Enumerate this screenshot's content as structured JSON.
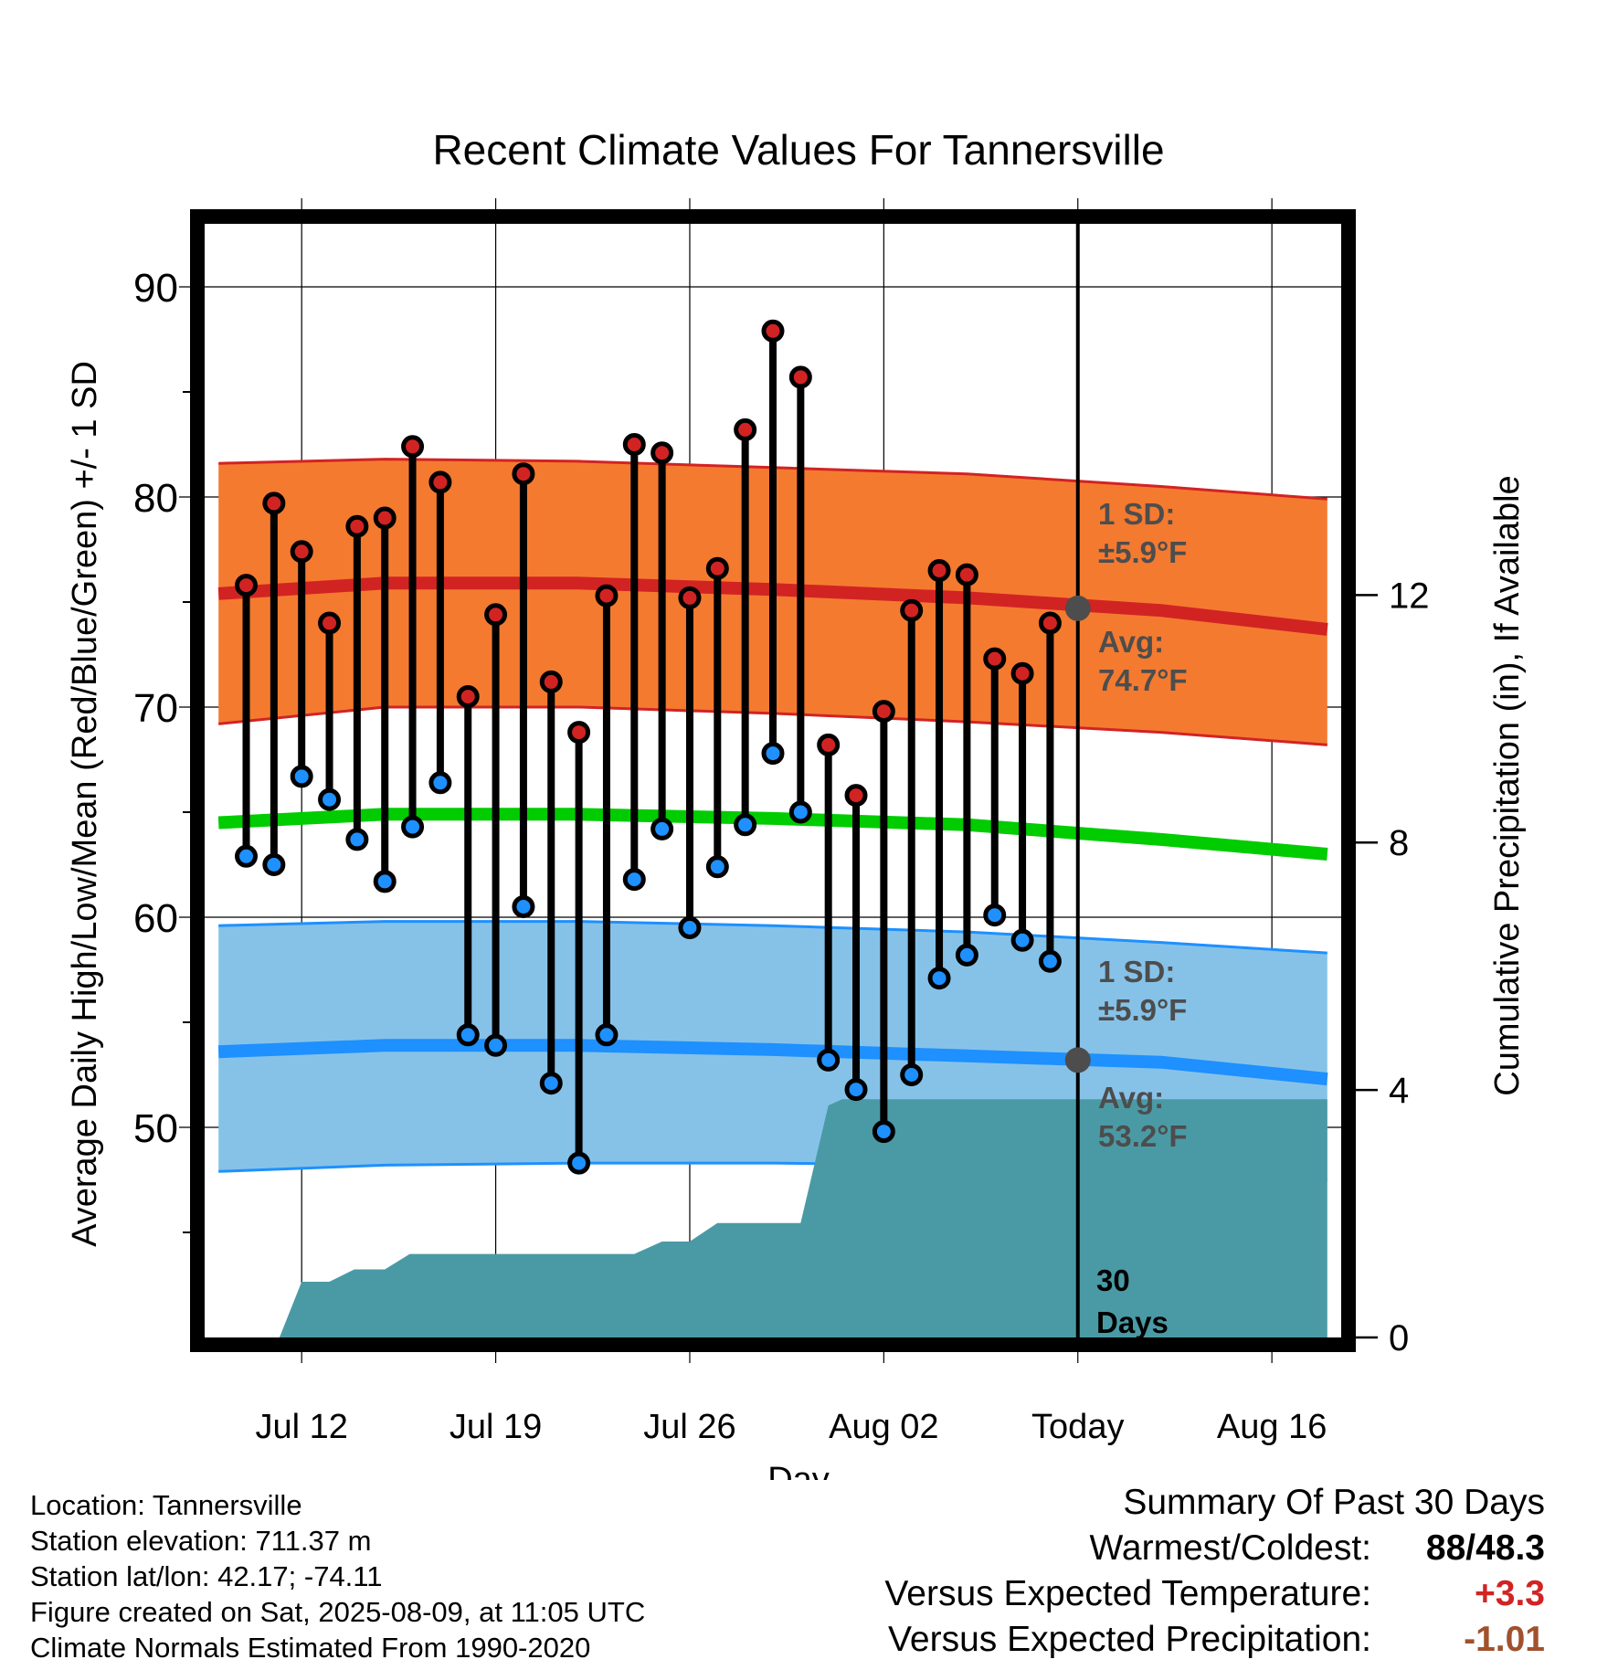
{
  "chart_data": {
    "type": "line",
    "title": "Recent Climate Values For Tannersville",
    "xlabel": "Day",
    "ylabel_left": "Average Daily High/Low/Mean (Red/Blue/Green) +/- 1 SD",
    "ylabel_right": "Cumulative Precipitation (in), If Available",
    "y_left_range": [
      40,
      93
    ],
    "y_left_ticks": [
      "50",
      "60",
      "70",
      "80",
      "90"
    ],
    "y_right_range": [
      0,
      18
    ],
    "y_right_ticks": [
      "0",
      "4",
      "8",
      "12"
    ],
    "x_range": [
      -3.5,
      37.5
    ],
    "x_ticks": [
      {
        "day": 0,
        "label": "Jul 12"
      },
      {
        "day": 7,
        "label": "Jul 19"
      },
      {
        "day": 14,
        "label": "Jul 26"
      },
      {
        "day": 21,
        "label": "Aug 02"
      },
      {
        "day": 28,
        "label": "Today"
      },
      {
        "day": 35,
        "label": "Aug 16"
      }
    ],
    "grid": true,
    "series": [
      {
        "name": "High",
        "color": "#d22323",
        "days": [
          -2,
          -1,
          0,
          1,
          2,
          3,
          4,
          5,
          6,
          7,
          8,
          9,
          10,
          11,
          12,
          13,
          14,
          15,
          16,
          17,
          18,
          19,
          20,
          21,
          22,
          23,
          24,
          25,
          26,
          27
        ],
        "values": [
          75.8,
          79.7,
          77.4,
          74.0,
          78.6,
          79.0,
          82.4,
          80.7,
          70.5,
          74.4,
          81.1,
          71.2,
          68.8,
          75.3,
          82.5,
          82.1,
          75.2,
          76.6,
          83.2,
          87.9,
          85.7,
          68.2,
          65.8,
          69.8,
          74.6,
          76.5,
          76.3,
          72.3,
          71.6,
          74.0
        ]
      },
      {
        "name": "Low",
        "color": "#1e90ff",
        "days": [
          -2,
          -1,
          0,
          1,
          2,
          3,
          4,
          5,
          6,
          7,
          8,
          9,
          10,
          11,
          12,
          13,
          14,
          15,
          16,
          17,
          18,
          19,
          20,
          21,
          22,
          23,
          24,
          25,
          26,
          27
        ],
        "values": [
          62.9,
          62.5,
          66.7,
          65.6,
          63.7,
          61.7,
          64.3,
          66.4,
          54.4,
          53.9,
          60.5,
          52.1,
          48.3,
          54.4,
          61.8,
          64.2,
          59.5,
          62.4,
          64.4,
          67.8,
          65.0,
          53.2,
          51.8,
          49.8,
          52.5,
          57.1,
          58.2,
          60.1,
          58.9,
          57.9
        ]
      },
      {
        "name": "Average High",
        "color": "#d22323",
        "days": [
          -3,
          3,
          10,
          17,
          24,
          31,
          37
        ],
        "values": [
          75.4,
          75.9,
          75.9,
          75.6,
          75.2,
          74.6,
          73.7
        ]
      },
      {
        "name": "Average High SD upper",
        "days": [
          -3,
          3,
          10,
          17,
          24,
          31,
          37
        ],
        "values": [
          81.6,
          81.8,
          81.7,
          81.4,
          81.1,
          80.5,
          79.9
        ]
      },
      {
        "name": "Average High SD lower",
        "days": [
          -3,
          3,
          10,
          17,
          24,
          31,
          37
        ],
        "values": [
          69.2,
          70.0,
          70.0,
          69.7,
          69.3,
          68.8,
          68.2
        ]
      },
      {
        "name": "Average Mean",
        "color": "#00cc00",
        "days": [
          -3,
          3,
          10,
          17,
          24,
          31,
          37
        ],
        "values": [
          64.5,
          64.9,
          64.9,
          64.7,
          64.4,
          63.7,
          63.0
        ]
      },
      {
        "name": "Average Low",
        "color": "#1e90ff",
        "days": [
          -3,
          3,
          10,
          17,
          24,
          31,
          37
        ],
        "values": [
          53.6,
          53.9,
          53.9,
          53.7,
          53.4,
          53.1,
          52.3
        ]
      },
      {
        "name": "Average Low SD upper",
        "days": [
          -3,
          3,
          10,
          17,
          24,
          31,
          37
        ],
        "values": [
          59.6,
          59.8,
          59.8,
          59.6,
          59.3,
          58.8,
          58.3
        ]
      },
      {
        "name": "Average Low SD lower",
        "days": [
          -3,
          3,
          10,
          17,
          24,
          31,
          37
        ],
        "values": [
          47.9,
          48.2,
          48.3,
          48.3,
          48.2,
          48.0,
          47.5
        ]
      },
      {
        "name": "Cumulative Precipitation",
        "color": "#4a9aa5",
        "days": [
          -2.7,
          -0.8,
          0,
          1,
          1.9,
          3,
          3.9,
          5,
          6,
          7,
          8,
          9,
          10,
          11,
          12,
          13,
          14,
          15,
          16,
          17,
          18,
          19,
          19.5,
          20,
          21,
          22,
          23,
          24,
          25,
          26,
          27,
          28,
          37
        ],
        "values": [
          0,
          0,
          0.9,
          0.9,
          1.1,
          1.1,
          1.35,
          1.35,
          1.35,
          1.35,
          1.35,
          1.35,
          1.35,
          1.35,
          1.35,
          1.55,
          1.55,
          1.85,
          1.85,
          1.85,
          1.85,
          3.75,
          3.85,
          3.85,
          3.85,
          3.85,
          3.85,
          3.85,
          3.85,
          3.85,
          3.85,
          3.85,
          3.85
        ]
      }
    ],
    "annotations": {
      "high_sd_label": [
        "1 SD:",
        "±5.9°F"
      ],
      "high_avg_label": [
        "Avg:",
        "74.7°F"
      ],
      "low_sd_label": [
        "1 SD:",
        "±5.9°F"
      ],
      "low_avg_label": [
        "Avg:",
        "53.2°F"
      ],
      "days_label": [
        "30",
        "Days"
      ],
      "today_high_avg": 74.7,
      "today_low_avg": 53.2
    },
    "colors": {
      "high_band": "#f47a30",
      "low_band": "#86c2e8",
      "high_line": "#d22323",
      "low_line": "#1e90ff",
      "mean_line": "#00cc00",
      "precip": "#4a9aa5",
      "annotation": "#4d4d4d"
    }
  },
  "info": {
    "location": "Location: Tannersville",
    "elevation": "Station elevation: 711.37 m",
    "latlon": "Station lat/lon: 42.17; -74.11",
    "created": "Figure created on Sat, 2025-08-09, at 11:05 UTC",
    "normals": "Climate Normals Estimated From 1990-2020"
  },
  "summary": {
    "heading": "Summary Of Past 30 Days",
    "warmest_label": "Warmest/Coldest:",
    "warmest_value": "88/48.3",
    "temp_label": "Versus Expected Temperature:",
    "temp_value": "+3.3",
    "temp_color": "#d22323",
    "precip_label": "Versus Expected Precipitation:",
    "precip_value": "-1.01",
    "precip_color": "#a0522d"
  }
}
